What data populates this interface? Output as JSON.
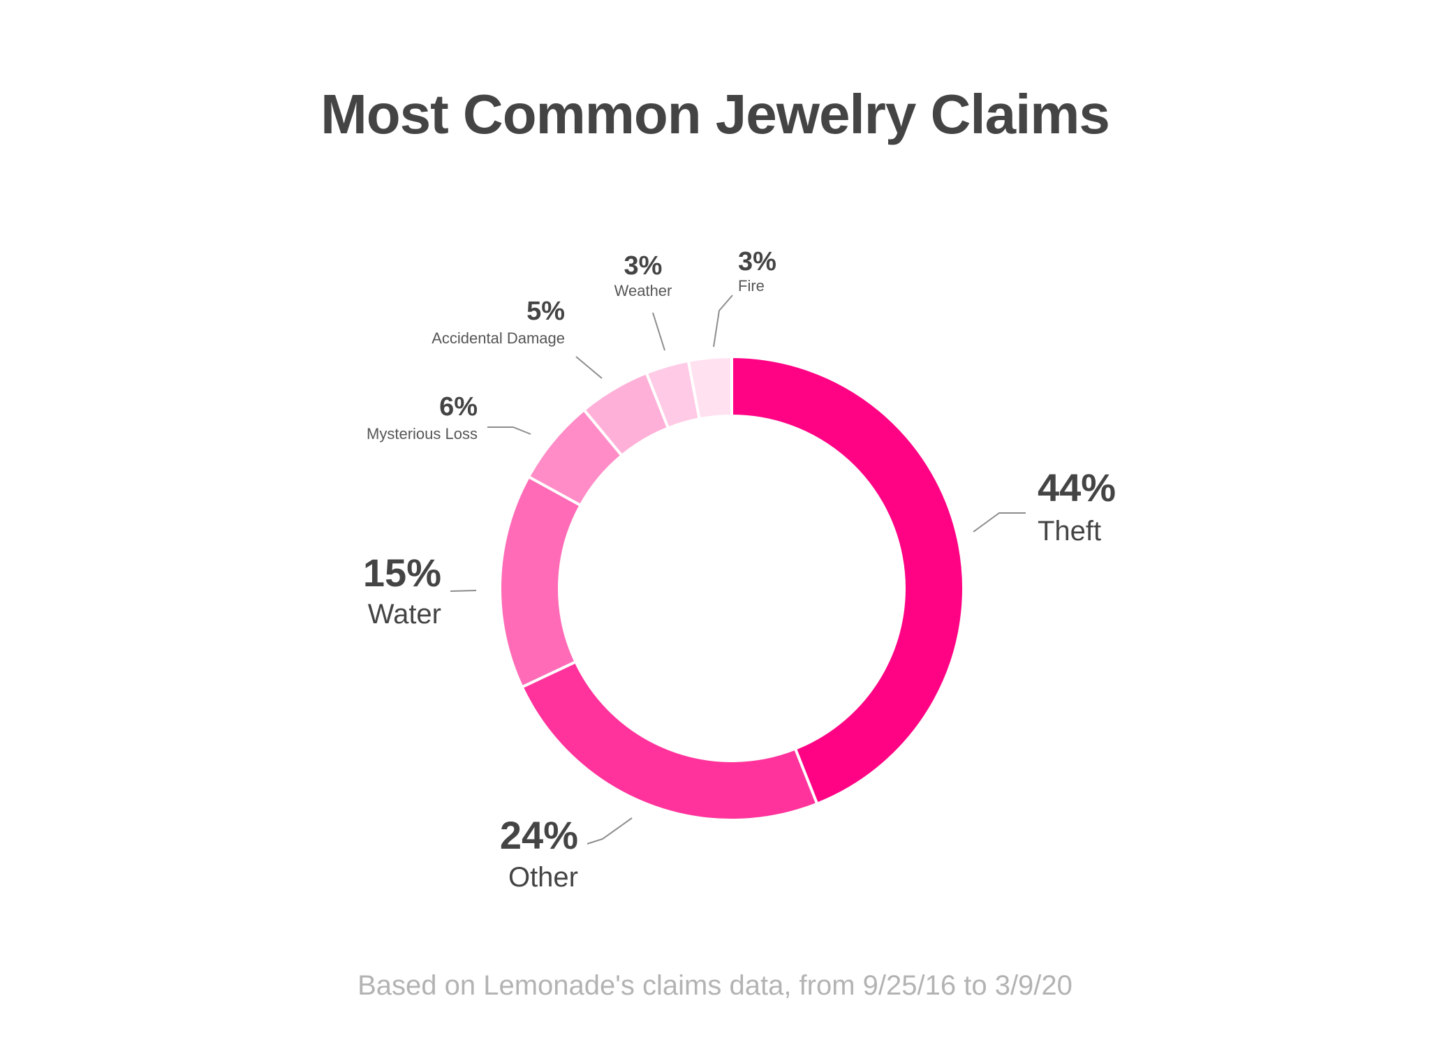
{
  "chart_data": {
    "type": "pie",
    "title": "Most Common Jewelry Claims",
    "footnote": "Based on Lemonade's claims data, from 9/25/16 to 3/9/20",
    "slices": [
      {
        "label": "Theft",
        "value": 44,
        "display": "44%",
        "color": "#ff0384"
      },
      {
        "label": "Other",
        "value": 24,
        "display": "24%",
        "color": "#ff339b"
      },
      {
        "label": "Water",
        "value": 15,
        "display": "15%",
        "color": "#ff6bb6"
      },
      {
        "label": "Mysterious Loss",
        "value": 6,
        "display": "6%",
        "color": "#ff8cc6"
      },
      {
        "label": "Accidental Damage",
        "value": 5,
        "display": "5%",
        "color": "#ffb0d8"
      },
      {
        "label": "Weather",
        "value": 3,
        "display": "3%",
        "color": "#ffcae5"
      },
      {
        "label": "Fire",
        "value": 3,
        "display": "3%",
        "color": "#ffe1f0"
      }
    ]
  }
}
